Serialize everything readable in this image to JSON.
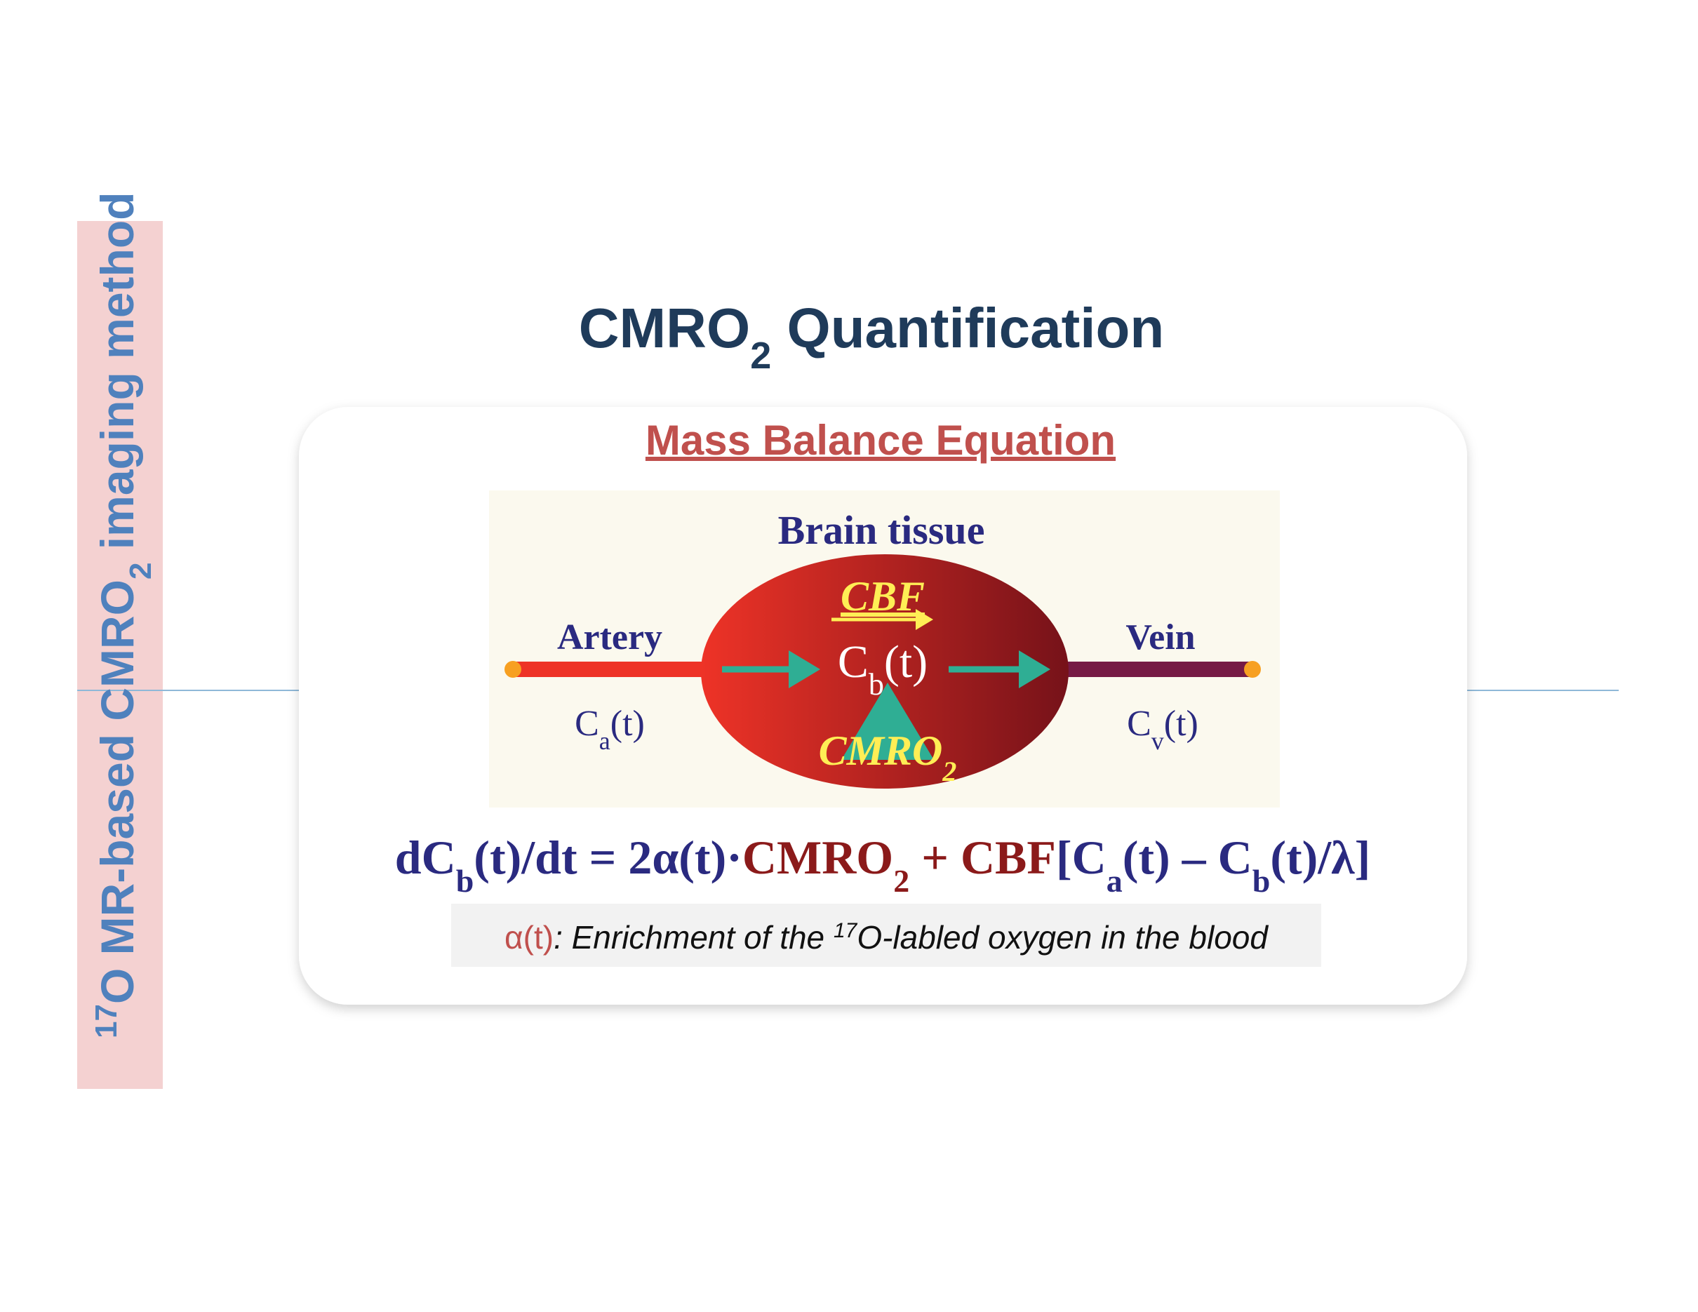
{
  "sidebar": {
    "parts": [
      "17",
      "O MR-based CMRO",
      "2",
      " imaging method"
    ]
  },
  "title": {
    "parts": [
      "CMRO",
      "2",
      " Quantification"
    ]
  },
  "subtitle": "Mass Balance Equation",
  "diagram": {
    "tissue_label": "Brain tissue",
    "cbf": "CBF",
    "cb": [
      "C",
      "b",
      "(t)"
    ],
    "cmro2": [
      "CMRO",
      "2"
    ],
    "artery": "Artery",
    "vein": "Vein",
    "ca": [
      "C",
      "a",
      "(t)"
    ],
    "cv": [
      "C",
      "v",
      "(t)"
    ]
  },
  "equation": {
    "parts": [
      "dC",
      "b",
      "(t)/dt = 2α(t)·",
      "CMRO",
      "2",
      " + CBF",
      "[C",
      "a",
      "(t) – C",
      "b",
      "(t)/λ]"
    ]
  },
  "footnote": {
    "parts": [
      "α(t)",
      ": Enrichment of the ",
      "17",
      "O-labled oxygen in the blood"
    ]
  }
}
